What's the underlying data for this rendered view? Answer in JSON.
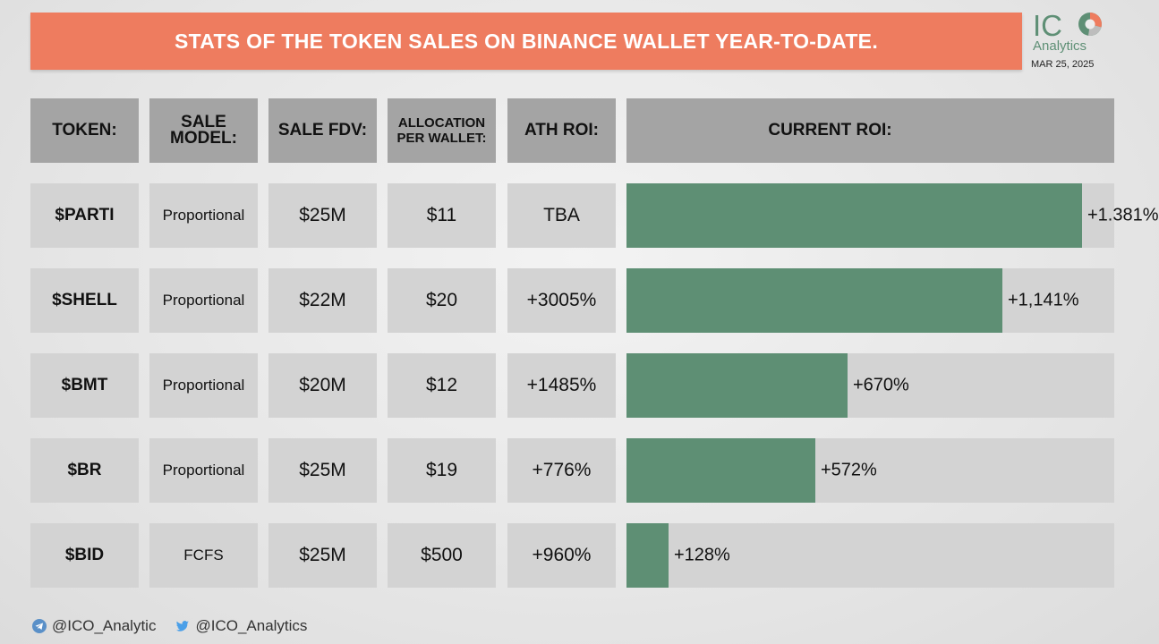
{
  "header": {
    "title": "STATS OF THE TOKEN SALES ON BINANCE WALLET YEAR-TO-DATE."
  },
  "logo": {
    "text_ic": "IC",
    "sub": "Analytics",
    "date": "MAR 25, 2025",
    "colors": {
      "green": "#5e8f75",
      "orange": "#ee7c5f"
    }
  },
  "columns": {
    "token": "TOKEN:",
    "model_line1": "SALE",
    "model_line2": "MODEL:",
    "fdv": "SALE FDV:",
    "alloc_line1": "ALLOCATION",
    "alloc_line2": "PER WALLET:",
    "ath": "ATH ROI:",
    "current": "CURRENT ROI:"
  },
  "colors": {
    "banner": "#ee7c5f",
    "header_cell": "#a4a4a4",
    "cell": "#d3d3d3",
    "bar": "#5e8f74"
  },
  "chart_data": {
    "type": "bar",
    "orientation": "horizontal",
    "title": "CURRENT ROI:",
    "categories": [
      "$PARTI",
      "$SHELL",
      "$BMT",
      "$BR",
      "$BID"
    ],
    "values": [
      1381,
      1141,
      670,
      572,
      128
    ],
    "value_labels": [
      "+1.381%",
      "+1,141%",
      "+670%",
      "+572%",
      "+128%"
    ],
    "unit": "%",
    "xlim": [
      0,
      1480
    ]
  },
  "rows": [
    {
      "token": "$PARTI",
      "model": "Proportional",
      "fdv": "$25M",
      "alloc": "$11",
      "ath": "TBA"
    },
    {
      "token": "$SHELL",
      "model": "Proportional",
      "fdv": "$22M",
      "alloc": "$20",
      "ath": "+3005%"
    },
    {
      "token": "$BMT",
      "model": "Proportional",
      "fdv": "$20M",
      "alloc": "$12",
      "ath": "+1485%"
    },
    {
      "token": "$BR",
      "model": "Proportional",
      "fdv": "$25M",
      "alloc": "$19",
      "ath": "+776%"
    },
    {
      "token": "$BID",
      "model": "FCFS",
      "fdv": "$25M",
      "alloc": "$500",
      "ath": "+960%"
    }
  ],
  "footer": {
    "telegram_handle": "@ICO_Analytic",
    "twitter_handle": "@ICO_Analytics",
    "telegram_icon": "telegram-icon",
    "twitter_icon": "twitter-icon"
  }
}
